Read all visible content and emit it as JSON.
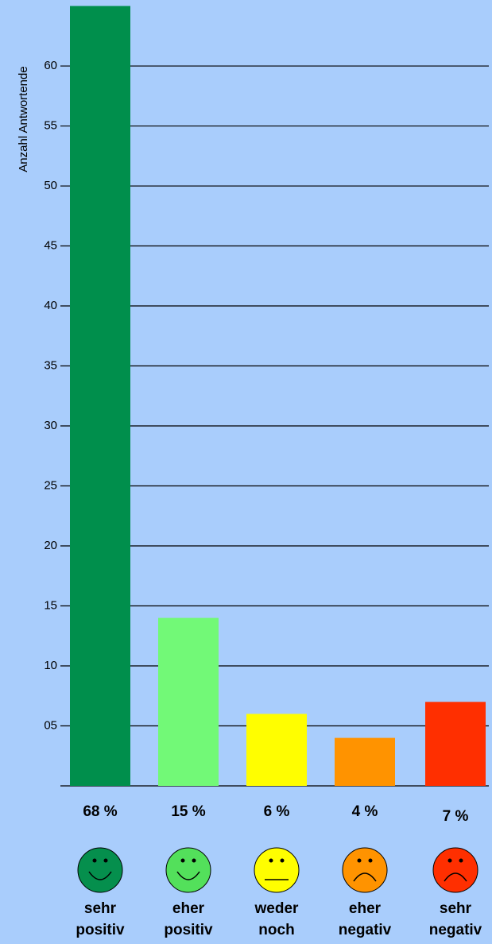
{
  "chart_data": {
    "type": "bar",
    "y_axis_label": "Anzahl Antwortende",
    "categories": [
      "sehr positiv",
      "eher positiv",
      "weder noch",
      "eher negativ",
      "sehr negativ"
    ],
    "values": [
      65,
      14,
      6,
      4,
      7
    ],
    "colors": [
      "#008f4c",
      "#72f977",
      "#fffe00",
      "#ff9300",
      "#ff2f00"
    ],
    "percent_labels": [
      "68 %",
      "15 %",
      "6 %",
      "4 %",
      "7 %"
    ],
    "ylim": [
      0,
      65.5
    ],
    "yticks": [
      {
        "value": 5,
        "label": "05"
      },
      10,
      15,
      20,
      25,
      30,
      35,
      40,
      45,
      50,
      55,
      60
    ],
    "grid": true
  }
}
